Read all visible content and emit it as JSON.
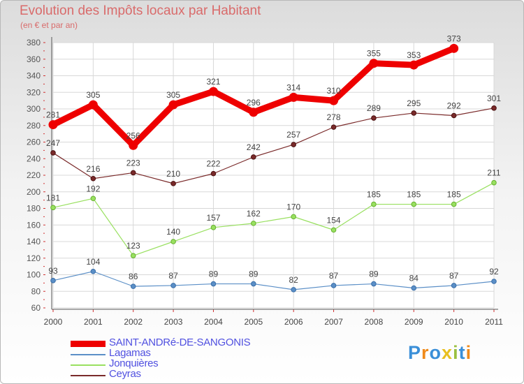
{
  "title": "Evolution des Impôts locaux par Habitant",
  "subtitle": "(en € et par an)",
  "logo_text": "Proxiti",
  "chart_data": {
    "type": "line",
    "title": "Evolution des Impôts locaux par Habitant",
    "subtitle": "(en € et par an)",
    "xlabel": "",
    "ylabel": "",
    "ylim": [
      60,
      380
    ],
    "ytick_step": 20,
    "x": [
      "2000",
      "2001",
      "2002",
      "2003",
      "2004",
      "2005",
      "2006",
      "2007",
      "2008",
      "2009",
      "2010",
      "2011"
    ],
    "series": [
      {
        "name": "SAINT-ANDRé-DE-SANGONIS",
        "color": "#ee0000",
        "values": [
          281,
          305,
          256,
          305,
          321,
          296,
          314,
          310,
          355,
          353,
          373,
          null
        ]
      },
      {
        "name": "Lagamas",
        "color": "#5b8fc7",
        "values": [
          93,
          104,
          86,
          87,
          89,
          89,
          82,
          87,
          89,
          84,
          87,
          92
        ]
      },
      {
        "name": "Jonquières",
        "color": "#99e060",
        "values": [
          181,
          192,
          123,
          140,
          157,
          162,
          170,
          154,
          185,
          185,
          185,
          211
        ]
      },
      {
        "name": "Ceyras",
        "color": "#7a2a2a",
        "values": [
          247,
          216,
          223,
          210,
          222,
          242,
          257,
          278,
          289,
          295,
          292,
          301
        ]
      }
    ],
    "legend_position": "bottom-left"
  }
}
